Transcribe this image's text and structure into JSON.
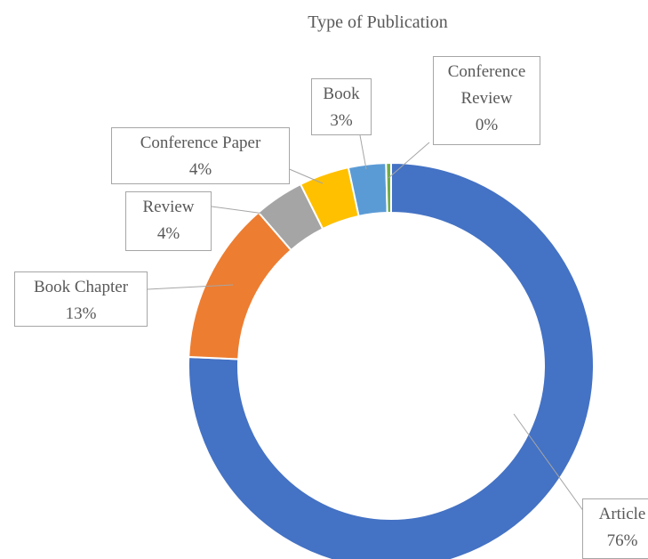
{
  "chart_data": {
    "type": "donut",
    "title": "Type of Publication",
    "categories": [
      "Article",
      "Book Chapter",
      "Review",
      "Conference Paper",
      "Book",
      "Conference Review"
    ],
    "values": [
      76,
      13,
      4,
      4,
      3,
      0.4
    ],
    "value_labels": [
      "76%",
      "13%",
      "4%",
      "4%",
      "3%",
      "0%"
    ],
    "colors": [
      "#4472c4",
      "#ed7d31",
      "#a5a5a5",
      "#ffc000",
      "#5b9bd5",
      "#70ad47"
    ]
  }
}
